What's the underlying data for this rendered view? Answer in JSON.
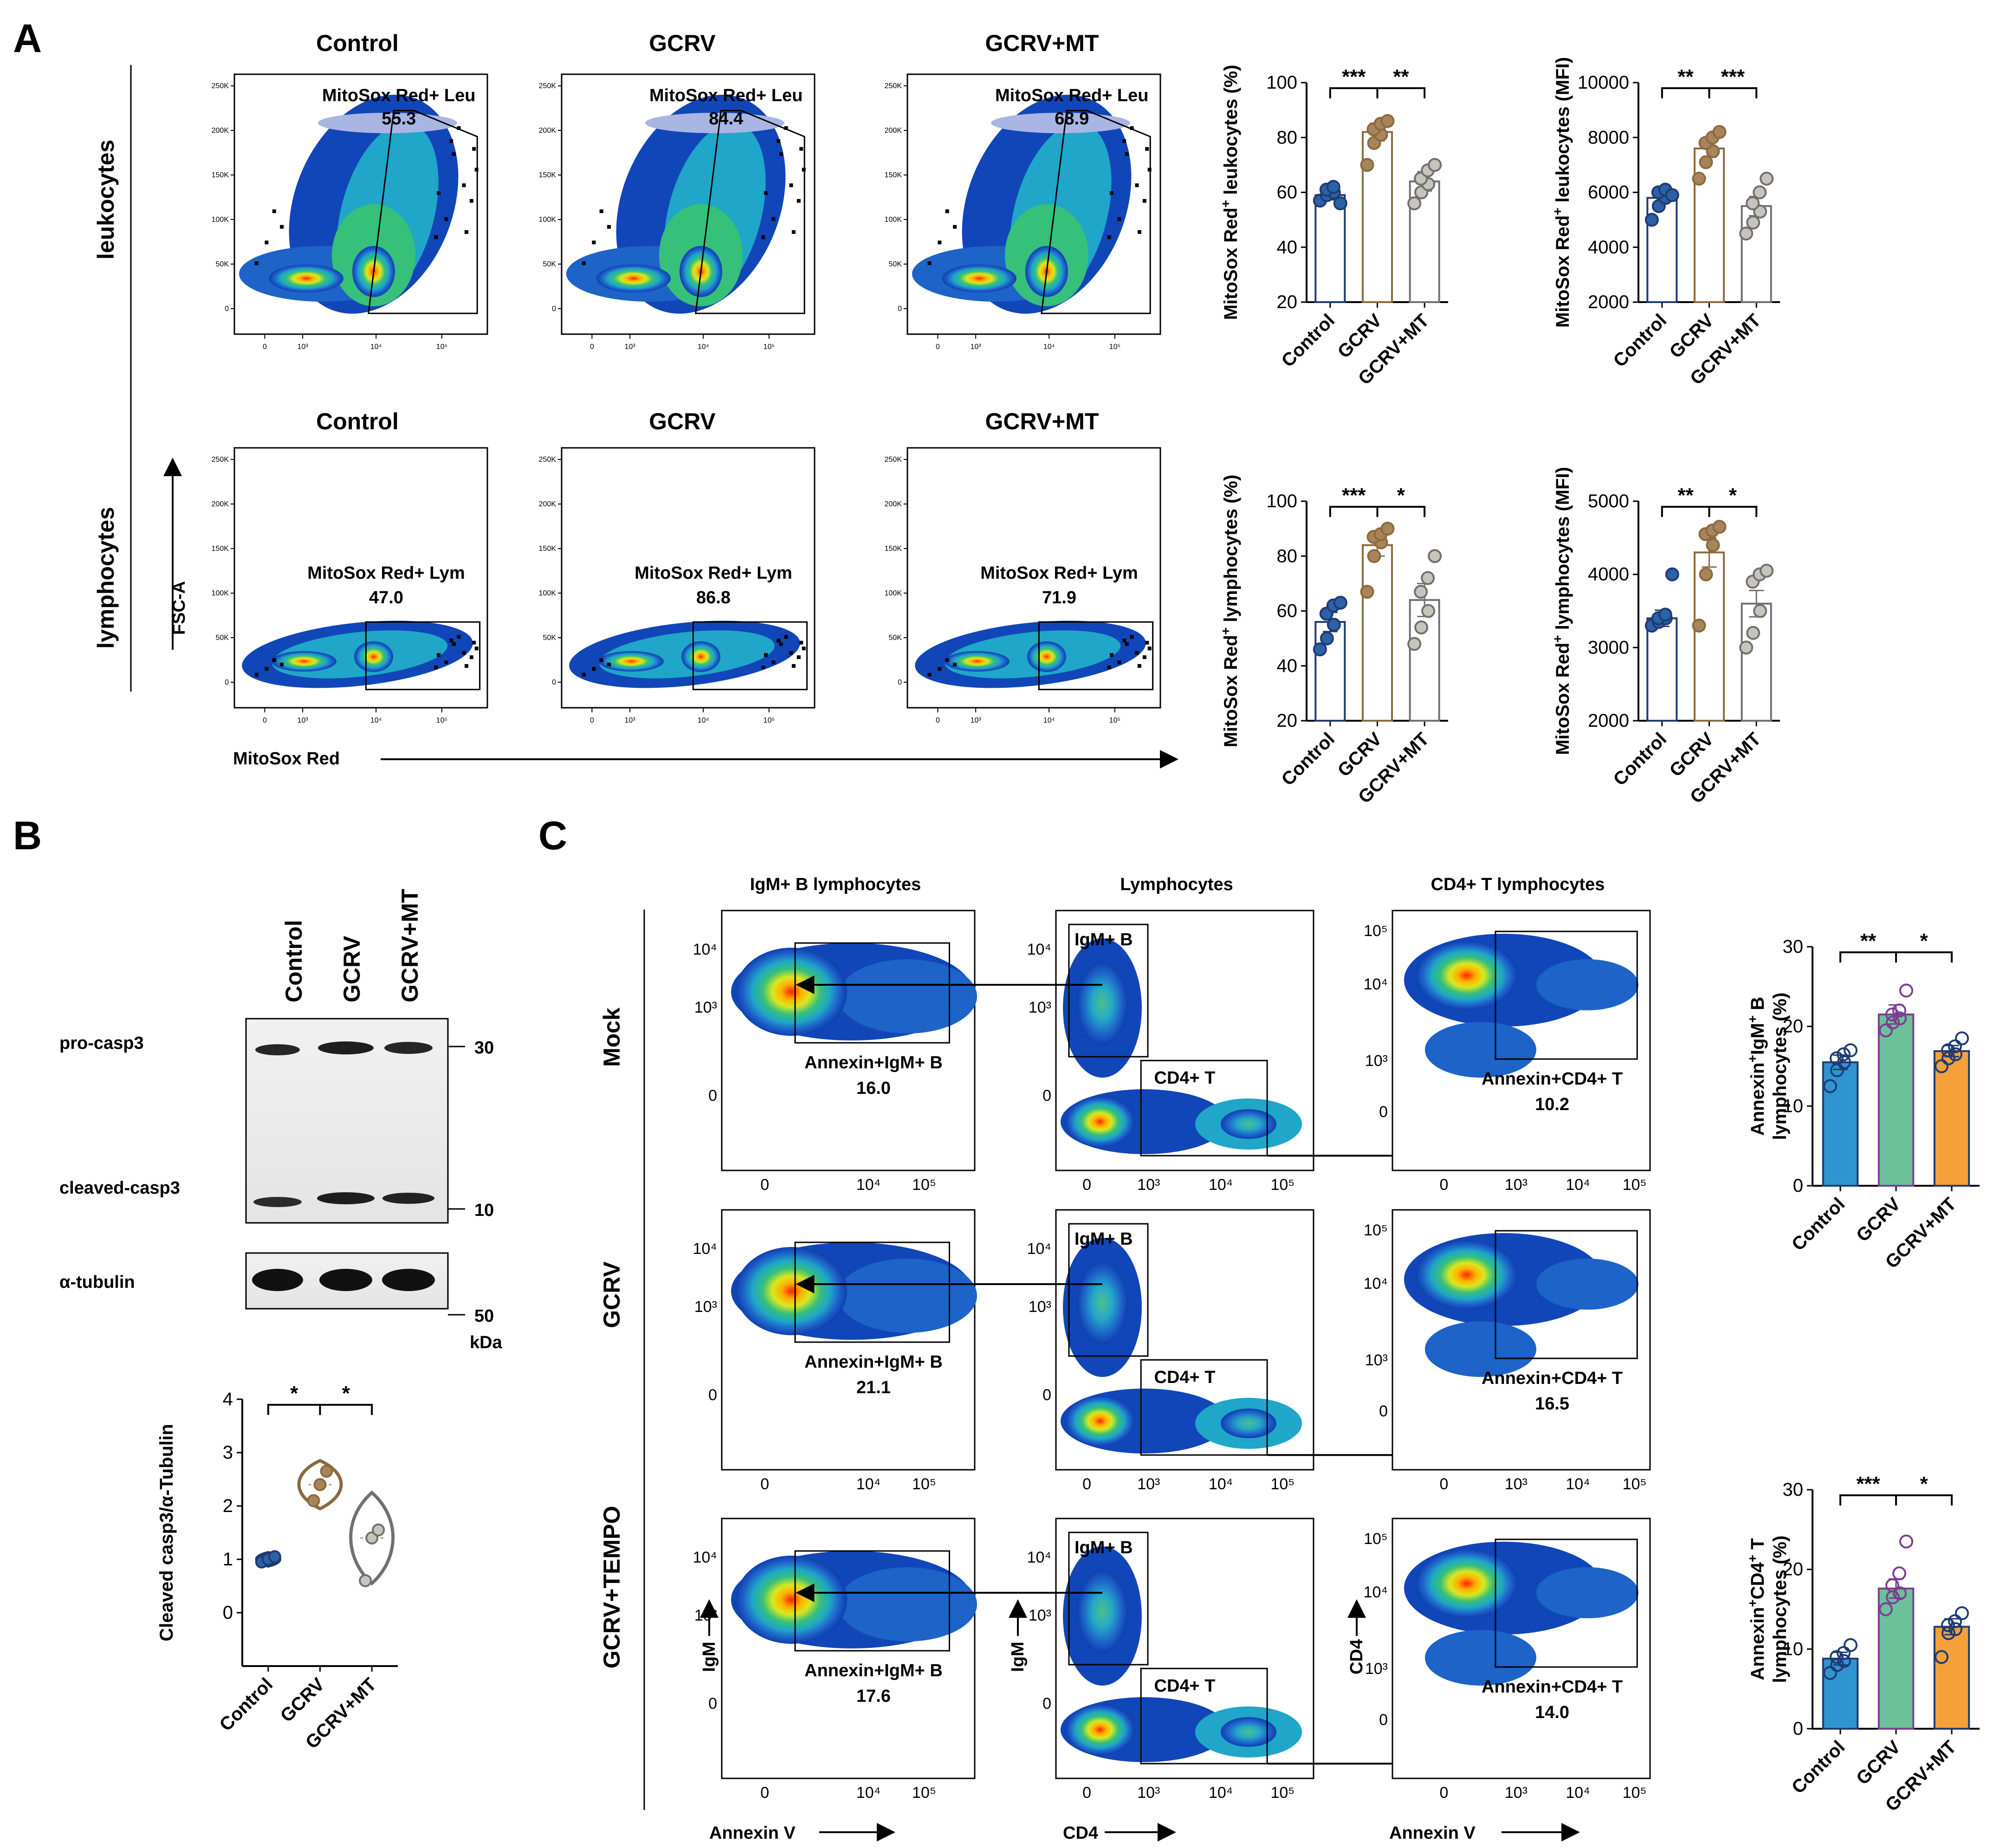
{
  "panels": {
    "a": "A",
    "b": "B",
    "c": "C"
  },
  "flow_a": {
    "col_titles": [
      "Control",
      "GCRV",
      "GCRV+MT"
    ],
    "row_labels": [
      "leukocytes",
      "lymphocytes"
    ],
    "leu": {
      "gate_label": "MitoSox Red+ Leu",
      "values": [
        "55.3",
        "84.4",
        "68.9"
      ]
    },
    "lym": {
      "gate_label": "MitoSox Red+ Lym",
      "values": [
        "47.0",
        "86.8",
        "71.9"
      ]
    },
    "y_axis": "FSC-A",
    "x_axis": "MitoSox Red",
    "y_ticks": [
      "250K",
      "200K",
      "150K",
      "100K",
      "50K",
      "0"
    ],
    "x_ticks": [
      "0",
      "10³",
      "10⁴",
      "10⁵"
    ]
  },
  "western": {
    "lanes": [
      "Control",
      "GCRV",
      "GCRV+MT"
    ],
    "bands": {
      "pro": "pro-casp3",
      "cleaved": "cleaved-casp3",
      "tubulin": "α-tubulin"
    },
    "markers": {
      "m30": "30",
      "m10": "10",
      "m50": "50",
      "unit": "kDa"
    }
  },
  "flow_c": {
    "col_titles": [
      "IgM+ B lymphocytes",
      "Lymphocytes",
      "CD4+ T lymphocytes"
    ],
    "row_labels": [
      "Mock",
      "GCRV",
      "GCRV+TEMPO"
    ],
    "b_gate": "Annexin+IgM+ B",
    "b_values": [
      "16.0",
      "21.1",
      "17.6"
    ],
    "t_gate": "Annexin+CD4+ T",
    "t_values": [
      "10.2",
      "16.5",
      "14.0"
    ],
    "lym_gates": {
      "igm": "IgM+ B",
      "cd4": "CD4+ T"
    },
    "axes": {
      "b_x": "Annexin V",
      "b_y": "IgM",
      "lym_x": "CD4",
      "lym_y": "IgM",
      "t_x": "Annexin V",
      "t_y": "CD4"
    },
    "ticks_b_y": [
      "10⁴",
      "10³",
      "0"
    ],
    "ticks_t_y": [
      "10⁵",
      "10⁴",
      "10³",
      "0"
    ],
    "ticks_x_b": [
      "0",
      "10⁴",
      "10⁵"
    ],
    "ticks_x_l": [
      "0",
      "10³",
      "10⁴",
      "10⁵"
    ]
  },
  "colors": {
    "control_dark": "#1f3b73",
    "control_fill": "#2a62a5",
    "gcrv_brown": "#8b6a3f",
    "gcrv_fill": "#a8845a",
    "mt_gray": "#707070",
    "mt_fill": "#c8c4bc",
    "bar_blue": "#2f95d0",
    "bar_green": "#6cc09a",
    "bar_orange": "#f5a03b",
    "point_purple": "#7a3f8f"
  },
  "chart_data": [
    {
      "type": "bar",
      "id": "a1",
      "title": "",
      "categories": [
        "Control",
        "GCRV",
        "GCRV+MT"
      ],
      "ylabel_pre": "MitoSox Red",
      "ylabel_sup": "+",
      "ylabel_post": " leukocytes (%)",
      "ylim": [
        20,
        100
      ],
      "yticks": [
        "20",
        "40",
        "60",
        "80",
        "100"
      ],
      "means": [
        59,
        82,
        64
      ],
      "sem": [
        1.7,
        3.2,
        3.5
      ],
      "points": [
        [
          57,
          59,
          60,
          61,
          62,
          56
        ],
        [
          70,
          78,
          81,
          83,
          85,
          86
        ],
        [
          56,
          60,
          63,
          65,
          68,
          70
        ]
      ],
      "sig": [
        {
          "pair": [
            0,
            1
          ],
          "label": "***"
        },
        {
          "pair": [
            1,
            2
          ],
          "label": "**"
        }
      ]
    },
    {
      "type": "bar",
      "id": "a2",
      "title": "",
      "categories": [
        "Control",
        "GCRV",
        "GCRV+MT"
      ],
      "ylabel_pre": "MitoSox Red",
      "ylabel_sup": "+",
      "ylabel_post": " leukocytes (MFI)",
      "ylim": [
        2000,
        10000
      ],
      "yticks": [
        "2000",
        "4000",
        "6000",
        "8000",
        "10000"
      ],
      "means": [
        5800,
        7600,
        5500
      ],
      "sem": [
        200,
        320,
        350
      ],
      "points": [
        [
          5000,
          5500,
          5800,
          6000,
          6100,
          5900
        ],
        [
          6500,
          7100,
          7500,
          7800,
          8000,
          8200
        ],
        [
          4500,
          4900,
          5300,
          5600,
          6000,
          6500
        ]
      ],
      "sig": [
        {
          "pair": [
            0,
            1
          ],
          "label": "**"
        },
        {
          "pair": [
            1,
            2
          ],
          "label": "***"
        }
      ]
    },
    {
      "type": "bar",
      "id": "a3",
      "title": "",
      "categories": [
        "Control",
        "GCRV",
        "GCRV+MT"
      ],
      "ylabel_pre": "MitoSox Red",
      "ylabel_sup": "+",
      "ylabel_post": " lymphocytes (%)",
      "ylim": [
        20,
        100
      ],
      "yticks": [
        "20",
        "40",
        "60",
        "80",
        "100"
      ],
      "means": [
        56,
        84,
        64
      ],
      "sem": [
        3.5,
        4.0,
        6.0
      ],
      "points": [
        [
          46,
          50,
          55,
          59,
          62,
          63
        ],
        [
          67,
          80,
          85,
          87,
          88,
          90
        ],
        [
          48,
          54,
          60,
          67,
          72,
          80
        ]
      ],
      "sig": [
        {
          "pair": [
            0,
            1
          ],
          "label": "***"
        },
        {
          "pair": [
            1,
            2
          ],
          "label": "*"
        }
      ]
    },
    {
      "type": "bar",
      "id": "a4",
      "title": "",
      "categories": [
        "Control",
        "GCRV",
        "GCRV+MT"
      ],
      "ylabel_pre": "MitoSox Red",
      "ylabel_sup": "+",
      "ylabel_post": " lymphocytes (MFI)",
      "ylim": [
        2000,
        5000
      ],
      "yticks": [
        "2000",
        "3000",
        "4000",
        "5000"
      ],
      "means": [
        3400,
        4300,
        3600
      ],
      "sem": [
        110,
        200,
        180
      ],
      "points": [
        [
          3300,
          3350,
          3400,
          3400,
          3450,
          4000
        ],
        [
          3300,
          4000,
          4400,
          4550,
          4600,
          4650
        ],
        [
          3000,
          3200,
          3500,
          3900,
          4000,
          4050
        ]
      ],
      "sig": [
        {
          "pair": [
            0,
            1
          ],
          "label": "**"
        },
        {
          "pair": [
            1,
            2
          ],
          "label": "*"
        }
      ]
    },
    {
      "type": "violin",
      "id": "b",
      "title": "",
      "categories": [
        "Control",
        "GCRV",
        "GCRV+MT"
      ],
      "ylabel_pre": "Cleaved casp3/α-Tubulin",
      "ylabel_sup": "",
      "ylabel_post": "",
      "ylim": [
        -1,
        4
      ],
      "yticks": [
        "0",
        "1",
        "2",
        "3",
        "4"
      ],
      "means": [
        1.0,
        2.4,
        1.4
      ],
      "points": [
        [
          0.95,
          1.0,
          1.05
        ],
        [
          2.1,
          2.4,
          2.65
        ],
        [
          0.6,
          1.4,
          1.55
        ]
      ],
      "spread": [
        0.25,
        0.9,
        1.7
      ],
      "sig": [
        {
          "pair": [
            0,
            1
          ],
          "label": "*"
        },
        {
          "pair": [
            1,
            2
          ],
          "label": "*"
        }
      ]
    },
    {
      "type": "bar",
      "id": "c1",
      "title": "",
      "categories": [
        "Control",
        "GCRV",
        "GCRV+MT"
      ],
      "ylabel_pre": "Annexin",
      "ylabel_sup": "+",
      "ylabel_post": "IgM",
      "ylabel_sup2": "+",
      "ylabel_end": " B",
      "ylabel_line2": "lymphocytes (%)",
      "ylim": [
        0,
        30
      ],
      "yticks": [
        "0",
        "10",
        "20",
        "30"
      ],
      "means": [
        15.5,
        21.5,
        16.9
      ],
      "sem": [
        0.9,
        1.2,
        0.7
      ],
      "points": [
        [
          12.5,
          14.5,
          15.5,
          16,
          16.5,
          17
        ],
        [
          19.5,
          20.5,
          21,
          21.5,
          22,
          24.5
        ],
        [
          15,
          16,
          16.5,
          17,
          17.5,
          18.5
        ]
      ],
      "sig": [
        {
          "pair": [
            0,
            1
          ],
          "label": "**"
        },
        {
          "pair": [
            1,
            2
          ],
          "label": "*"
        }
      ]
    },
    {
      "type": "bar",
      "id": "c2",
      "title": "",
      "categories": [
        "Control",
        "GCRV",
        "GCRV+MT"
      ],
      "ylabel_pre": "Annexin",
      "ylabel_sup": "+",
      "ylabel_post": "CD4",
      "ylabel_sup2": "+",
      "ylabel_end": " T",
      "ylabel_line2": "lymphocytes (%)",
      "ylim": [
        0,
        30
      ],
      "yticks": [
        "0",
        "10",
        "20",
        "30"
      ],
      "means": [
        8.8,
        17.6,
        12.8
      ],
      "sem": [
        0.8,
        1.2,
        1.0
      ],
      "points": [
        [
          7,
          8,
          8.5,
          9,
          9.5,
          10.5
        ],
        [
          15,
          16.5,
          17,
          18,
          19.5,
          23.5
        ],
        [
          9,
          12,
          12.5,
          13,
          13.5,
          14.5
        ]
      ],
      "sig": [
        {
          "pair": [
            0,
            1
          ],
          "label": "***"
        },
        {
          "pair": [
            1,
            2
          ],
          "label": "*"
        }
      ]
    }
  ]
}
